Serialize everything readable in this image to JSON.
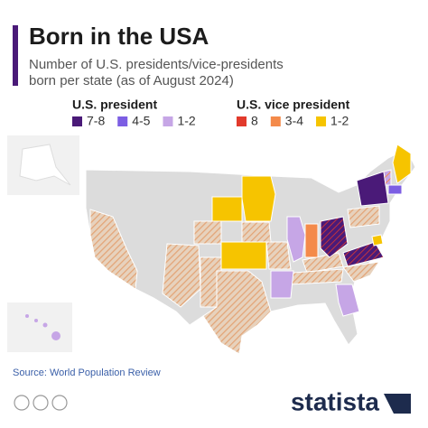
{
  "header": {
    "title": "Born in the USA",
    "subtitle": [
      "Number of U.S. presidents/vice-presidents",
      "born per state (as of August 2024)"
    ]
  },
  "legend": {
    "groups": [
      {
        "title": "U.S. president",
        "items": [
          {
            "label": "7-8",
            "color": "#4a1a78"
          },
          {
            "label": "4-5",
            "color": "#7c5ee3"
          },
          {
            "label": "1-2",
            "color": "#c6a6e6"
          }
        ]
      },
      {
        "title": "U.S. vice president",
        "items": [
          {
            "label": "8",
            "color": "#e23a2c"
          },
          {
            "label": "3-4",
            "color": "#f48a4a"
          },
          {
            "label": "1-2",
            "color": "#f6c400"
          }
        ]
      }
    ]
  },
  "footer": {
    "source": "Source: World Population Review",
    "brand": "statista"
  }
}
